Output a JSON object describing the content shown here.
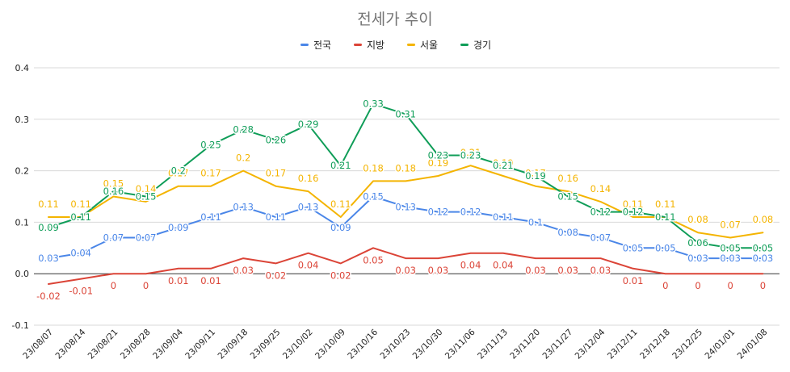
{
  "chart_data": {
    "type": "line",
    "title": "전세가 추이",
    "xlabel": "",
    "ylabel": "",
    "ylim": [
      -0.1,
      0.4
    ],
    "yticks": [
      "-0.1",
      "0.0",
      "0.1",
      "0.2",
      "0.3",
      "0.4"
    ],
    "ytick_values": [
      -0.1,
      0,
      0.1,
      0.2,
      0.3,
      0.4
    ],
    "grid": true,
    "legend_position": "top",
    "categories": [
      "23/08/07",
      "23/08/14",
      "23/08/21",
      "23/08/28",
      "23/09/04",
      "23/09/11",
      "23/09/18",
      "23/09/25",
      "23/10/02",
      "23/10/09",
      "23/10/16",
      "23/10/23",
      "23/10/30",
      "23/11/06",
      "23/11/13",
      "23/11/20",
      "23/11/27",
      "23/12/04",
      "23/12/11",
      "23/12/18",
      "23/12/25",
      "24/01/01",
      "24/01/08"
    ],
    "series": [
      {
        "name": "전국",
        "color": "#4a86e8",
        "values": [
          0.03,
          0.04,
          0.07,
          0.07,
          0.09,
          0.11,
          0.13,
          0.11,
          0.13,
          0.09,
          0.15,
          0.13,
          0.12,
          0.12,
          0.11,
          0.1,
          0.08,
          0.07,
          0.05,
          0.05,
          0.03,
          0.03,
          0.03
        ],
        "labels": [
          "0.03",
          "0.04",
          "0.07",
          "0.07",
          "0.09",
          "0.11",
          "0.13",
          "0.11",
          "0.13",
          "0.09",
          "0.15",
          "0.13",
          "0.12",
          "0.12",
          "0.11",
          "0.1",
          "0.08",
          "0.07",
          "0.05",
          "0.05",
          "0.03",
          "0.03",
          "0.03"
        ]
      },
      {
        "name": "지방",
        "color": "#db4437",
        "values": [
          -0.02,
          -0.01,
          0,
          0,
          0.01,
          0.01,
          0.03,
          0.02,
          0.04,
          0.02,
          0.05,
          0.03,
          0.03,
          0.04,
          0.04,
          0.03,
          0.03,
          0.03,
          0.01,
          0,
          0,
          0,
          0
        ],
        "labels": [
          "-0.02",
          "-0.01",
          "0",
          "0",
          "0.01",
          "0.01",
          "0.03",
          "0.02",
          "0.04",
          "0.02",
          "0.05",
          "0.03",
          "0.03",
          "0.04",
          "0.04",
          "0.03",
          "0.03",
          "0.03",
          "0.01",
          "0",
          "0",
          "0",
          "0"
        ]
      },
      {
        "name": "서울",
        "color": "#f4b400",
        "values": [
          0.11,
          0.11,
          0.15,
          0.14,
          0.17,
          0.17,
          0.2,
          0.17,
          0.16,
          0.11,
          0.18,
          0.18,
          0.19,
          0.21,
          0.19,
          0.17,
          0.16,
          0.14,
          0.11,
          0.11,
          0.08,
          0.07,
          0.08
        ],
        "labels": [
          "0.11",
          "0.11",
          "0.15",
          "0.14",
          "0.17",
          "0.17",
          "0.2",
          "0.17",
          "0.16",
          "0.11",
          "0.18",
          "0.18",
          "0.19",
          "0.21",
          "0.19",
          "0.17",
          "0.16",
          "0.14",
          "0.11",
          "0.11",
          "0.08",
          "0.07",
          "0.08"
        ]
      },
      {
        "name": "경기",
        "color": "#0f9d58",
        "values": [
          0.09,
          0.11,
          0.16,
          0.15,
          0.2,
          0.25,
          0.28,
          0.26,
          0.29,
          0.21,
          0.33,
          0.31,
          0.23,
          0.23,
          0.21,
          0.19,
          0.15,
          0.12,
          0.12,
          0.11,
          0.06,
          0.05,
          0.05
        ],
        "labels": [
          "0.09",
          "0.11",
          "0.16",
          "0.15",
          "0.2",
          "0.25",
          "0.28",
          "0.26",
          "0.29",
          "0.21",
          "0.33",
          "0.31",
          "0.23",
          "0.23",
          "0.21",
          "0.19",
          "0.15",
          "0.12",
          "0.12",
          "0.11",
          "0.06",
          "0.05",
          "0.05"
        ]
      }
    ]
  }
}
